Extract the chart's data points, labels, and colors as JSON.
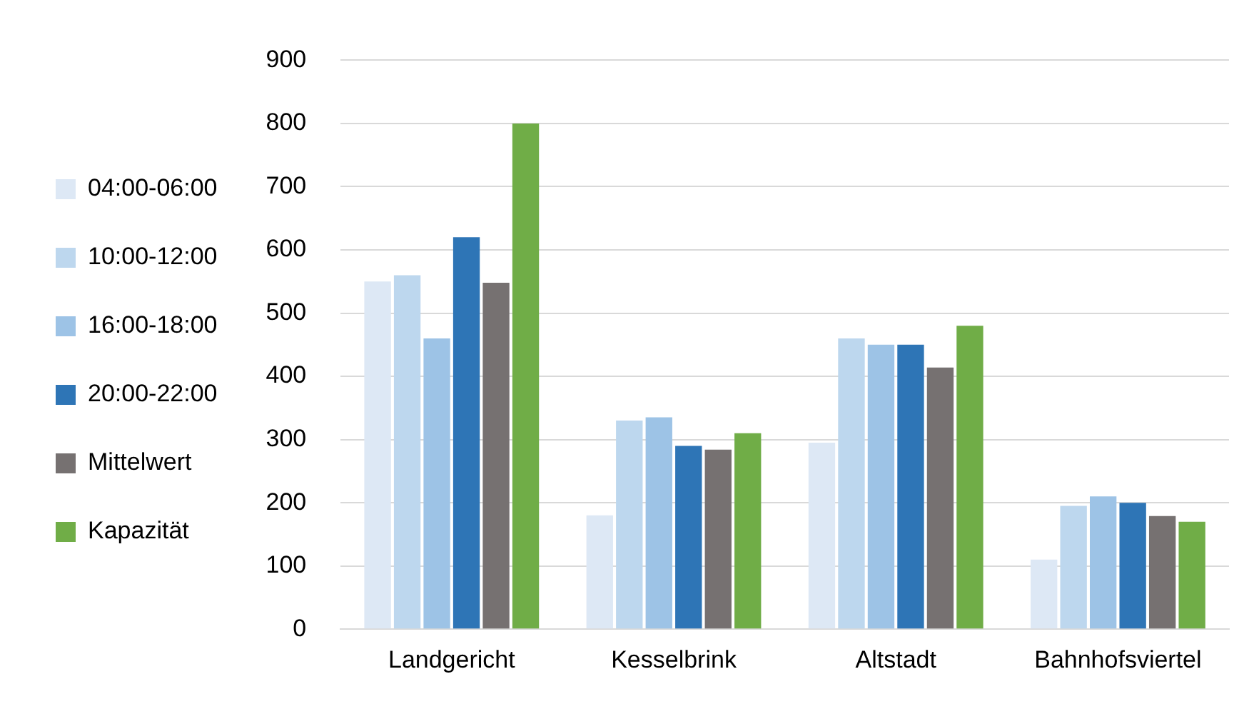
{
  "chart_data": {
    "type": "bar",
    "categories": [
      "Landgericht",
      "Kesselbrink",
      "Altstadt",
      "Bahnhofsviertel"
    ],
    "series": [
      {
        "name": "04:00-06:00",
        "color": "#dde8f5",
        "values": [
          550,
          180,
          295,
          110
        ]
      },
      {
        "name": "10:00-12:00",
        "color": "#bdd7ee",
        "values": [
          560,
          330,
          460,
          195
        ]
      },
      {
        "name": "16:00-18:00",
        "color": "#9dc3e6",
        "values": [
          460,
          335,
          450,
          210
        ]
      },
      {
        "name": "20:00-22:00",
        "color": "#2e75b6",
        "values": [
          620,
          290,
          450,
          200
        ]
      },
      {
        "name": "Mittelwert",
        "color": "#767171",
        "values": [
          548,
          284,
          414,
          179
        ]
      },
      {
        "name": "Kapazität",
        "color": "#70ad47",
        "values": [
          800,
          310,
          480,
          170
        ]
      }
    ],
    "ylim": [
      0,
      900
    ],
    "yticks": [
      0,
      100,
      200,
      300,
      400,
      500,
      600,
      700,
      800,
      900
    ],
    "grid": "y",
    "legend": "left"
  }
}
